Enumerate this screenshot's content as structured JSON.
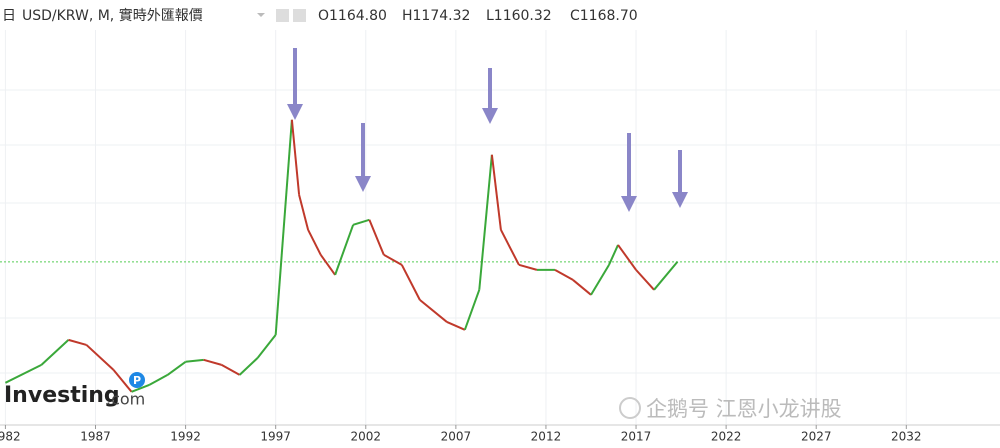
{
  "chart_data": {
    "type": "line",
    "header_prefix": "日",
    "title": "USD/KRW, M, 實時外匯報價",
    "ohlc": [
      {
        "value": 1164.8,
        "label": "O1164.80"
      },
      {
        "value": 1174.32,
        "label": "H1174.32"
      },
      {
        "value": 1160.32,
        "label": "L1160.32"
      },
      {
        "value": 1168.7,
        "label": "C1168.70"
      }
    ],
    "watermark": "Investing",
    "watermark_suffix": ".com",
    "watermark_badge": "P",
    "credit": "企鹅号 江恩小龙讲股",
    "x": [
      1982,
      1984,
      1985.5,
      1986.5,
      1988,
      1989,
      1990,
      1991,
      1992,
      1993,
      1994,
      1995,
      1996,
      1997,
      1997.9,
      1998.3,
      1998.8,
      1999.5,
      2000.3,
      2001.3,
      2002.2,
      2003,
      2004,
      2005,
      2006.5,
      2007.5,
      2008.3,
      2009,
      2009.5,
      2010.5,
      2011.5,
      2012.5,
      2013.5,
      2014.5,
      2015.5,
      2016,
      2017,
      2018,
      2019.3
    ],
    "values": [
      495,
      595,
      734,
      706,
      567,
      445,
      484,
      539,
      612,
      623,
      595,
      539,
      634,
      762,
      1960,
      1542,
      1347,
      1208,
      1096,
      1375,
      1403,
      1208,
      1152,
      957,
      834,
      790,
      1013,
      1765,
      1347,
      1152,
      1124,
      1124,
      1068,
      985,
      1152,
      1263,
      1124,
      1013,
      1169
    ],
    "up_color": "#3aa83a",
    "down_color": "#c0392b",
    "last_color": "#55cc55",
    "xlim": [
      1981.7,
      2037.2
    ],
    "ylim": [
      260,
      2460
    ],
    "xticks": [
      1982,
      1987,
      1992,
      1997,
      2002,
      2007,
      2012,
      2017,
      2022,
      2027,
      2032
    ],
    "grid": true
  }
}
